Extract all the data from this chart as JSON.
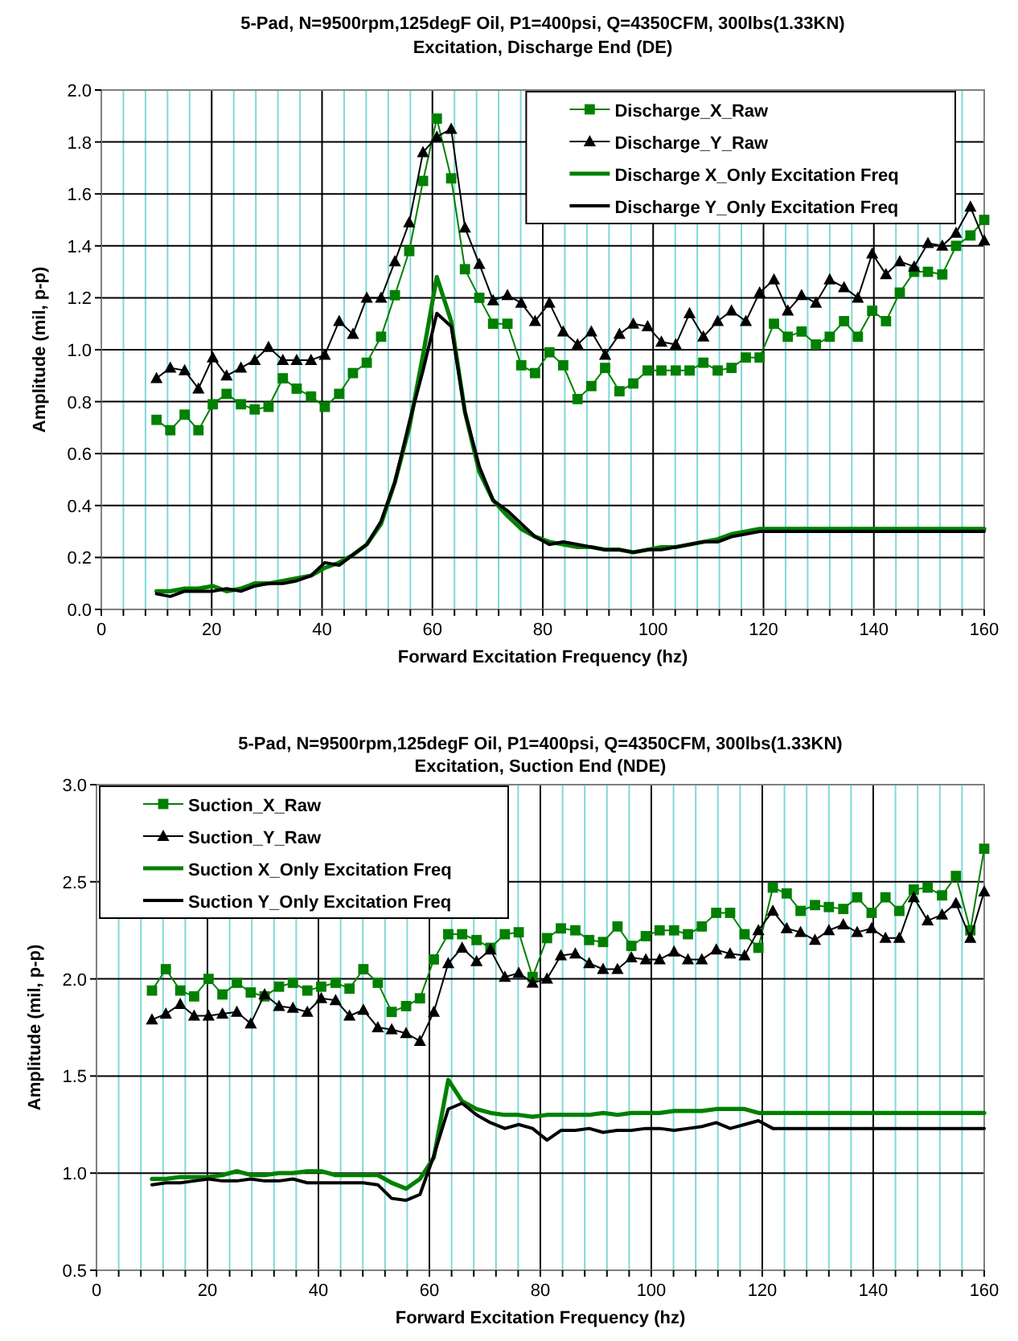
{
  "chart_data": [
    {
      "type": "line",
      "title": "5-Pad, N=9500rpm,125degF Oil, P1=400psi, Q=4350CFM, 300lbs(1.33KN)",
      "subtitle": "Excitation, Discharge End (DE)",
      "xlabel": "Forward Excitation Frequency (hz)",
      "ylabel": "Amplitude (mil, p-p)",
      "x": [
        10,
        12.5,
        15.1,
        17.6,
        20.2,
        22.7,
        25.3,
        27.8,
        30.3,
        32.9,
        35.4,
        38.0,
        40.5,
        43.1,
        45.6,
        48.1,
        50.7,
        53.2,
        55.8,
        58.3,
        60.8,
        63.4,
        65.9,
        68.5,
        71.0,
        73.6,
        76.1,
        78.6,
        81.2,
        83.7,
        86.3,
        88.8,
        91.3,
        93.9,
        96.4,
        99.0,
        101.5,
        104.1,
        106.6,
        109.1,
        111.7,
        114.2,
        116.8,
        119.3,
        121.9,
        124.4,
        126.9,
        129.5,
        132.0,
        134.6,
        137.1,
        139.7,
        142.2,
        144.7,
        147.3,
        149.8,
        152.4,
        154.9,
        157.5,
        160.0
      ],
      "series": [
        {
          "name": "Discharge_X_Raw",
          "color": "#008000",
          "marker": "square",
          "values": [
            0.73,
            0.69,
            0.75,
            0.69,
            0.79,
            0.83,
            0.79,
            0.77,
            0.78,
            0.89,
            0.85,
            0.82,
            0.78,
            0.83,
            0.91,
            0.95,
            1.05,
            1.21,
            1.38,
            1.65,
            1.89,
            1.66,
            1.31,
            1.2,
            1.1,
            1.1,
            0.94,
            0.91,
            0.99,
            0.94,
            0.81,
            0.86,
            0.93,
            0.84,
            0.87,
            0.92,
            0.92,
            0.92,
            0.92,
            0.95,
            0.92,
            0.93,
            0.97,
            0.97,
            1.1,
            1.05,
            1.07,
            1.02,
            1.05,
            1.11,
            1.05,
            1.15,
            1.11,
            1.22,
            1.3,
            1.3,
            1.29,
            1.4,
            1.44,
            1.5
          ]
        },
        {
          "name": "Discharge_Y_Raw",
          "color": "#000000",
          "marker": "triangle",
          "values": [
            0.89,
            0.93,
            0.92,
            0.85,
            0.97,
            0.9,
            0.93,
            0.96,
            1.01,
            0.96,
            0.96,
            0.96,
            0.98,
            1.11,
            1.06,
            1.2,
            1.2,
            1.34,
            1.49,
            1.76,
            1.82,
            1.85,
            1.47,
            1.33,
            1.19,
            1.21,
            1.18,
            1.11,
            1.18,
            1.07,
            1.02,
            1.07,
            0.98,
            1.06,
            1.1,
            1.09,
            1.03,
            1.02,
            1.14,
            1.05,
            1.11,
            1.15,
            1.11,
            1.22,
            1.27,
            1.15,
            1.21,
            1.18,
            1.27,
            1.24,
            1.2,
            1.37,
            1.29,
            1.34,
            1.32,
            1.41,
            1.4,
            1.45,
            1.55,
            1.42
          ]
        },
        {
          "name": "Discharge X_Only Excitation Freq",
          "color": "#008000",
          "marker": "none",
          "values": [
            0.07,
            0.07,
            0.08,
            0.08,
            0.09,
            0.07,
            0.08,
            0.1,
            0.1,
            0.11,
            0.12,
            0.13,
            0.16,
            0.18,
            0.21,
            0.25,
            0.33,
            0.49,
            0.7,
            0.98,
            1.28,
            1.11,
            0.76,
            0.53,
            0.42,
            0.36,
            0.31,
            0.28,
            0.26,
            0.25,
            0.24,
            0.24,
            0.23,
            0.23,
            0.22,
            0.23,
            0.24,
            0.24,
            0.25,
            0.26,
            0.27,
            0.29,
            0.3,
            0.31,
            0.31,
            0.31,
            0.31,
            0.31,
            0.31,
            0.31,
            0.31,
            0.31,
            0.31,
            0.31,
            0.31,
            0.31,
            0.31,
            0.31,
            0.31,
            0.31
          ]
        },
        {
          "name": "Discharge Y_Only Excitation Freq",
          "color": "#000000",
          "marker": "none",
          "values": [
            0.06,
            0.05,
            0.07,
            0.07,
            0.07,
            0.08,
            0.07,
            0.09,
            0.1,
            0.1,
            0.11,
            0.13,
            0.18,
            0.17,
            0.21,
            0.25,
            0.34,
            0.49,
            0.72,
            0.92,
            1.14,
            1.09,
            0.76,
            0.55,
            0.42,
            0.38,
            0.33,
            0.28,
            0.25,
            0.26,
            0.25,
            0.24,
            0.23,
            0.23,
            0.22,
            0.23,
            0.23,
            0.24,
            0.25,
            0.26,
            0.26,
            0.28,
            0.29,
            0.3,
            0.3,
            0.3,
            0.3,
            0.3,
            0.3,
            0.3,
            0.3,
            0.3,
            0.3,
            0.3,
            0.3,
            0.3,
            0.3,
            0.3,
            0.3,
            0.3
          ]
        }
      ],
      "xlim": [
        0,
        160
      ],
      "ylim": [
        0,
        2.0
      ],
      "xticks": [
        0,
        {
          "value": 4,
          "label": null
        },
        {
          "value": 8,
          "label": null
        },
        {
          "value": 12,
          "label": null
        },
        {
          "value": 16,
          "label": null
        },
        20,
        {
          "value": 24,
          "label": null
        },
        {
          "value": 28,
          "label": null
        },
        {
          "value": 32,
          "label": null
        },
        {
          "value": 36,
          "label": null
        },
        40,
        {
          "value": 44,
          "label": null
        },
        {
          "value": 48,
          "label": null
        },
        {
          "value": 52,
          "label": null
        },
        {
          "value": 56,
          "label": null
        },
        60,
        {
          "value": 64,
          "label": null
        },
        {
          "value": 68,
          "label": null
        },
        {
          "value": 72,
          "label": null
        },
        {
          "value": 76,
          "label": null
        },
        80,
        {
          "value": 84,
          "label": null
        },
        {
          "value": 88,
          "label": null
        },
        {
          "value": 92,
          "label": null
        },
        {
          "value": 96,
          "label": null
        },
        100,
        {
          "value": 104,
          "label": null
        },
        {
          "value": 108,
          "label": null
        },
        {
          "value": 112,
          "label": null
        },
        {
          "value": 116,
          "label": null
        },
        120,
        {
          "value": 124,
          "label": null
        },
        {
          "value": 128,
          "label": null
        },
        {
          "value": 132,
          "label": null
        },
        {
          "value": 136,
          "label": null
        },
        140,
        {
          "value": 144,
          "label": null
        },
        {
          "value": 148,
          "label": null
        },
        {
          "value": 152,
          "label": null
        },
        {
          "value": 156,
          "label": null
        },
        160
      ],
      "yticks": [
        {
          "value": 0,
          "label": "0.0"
        },
        0.2,
        0.4,
        0.6,
        0.8,
        {
          "value": 1,
          "label": "1.0"
        },
        1.2,
        1.4,
        1.6,
        1.8,
        {
          "value": 2,
          "label": "2.0"
        }
      ],
      "grid": true,
      "legend": "top right"
    },
    {
      "type": "line",
      "title": "5-Pad, N=9500rpm,125degF Oil, P1=400psi, Q=4350CFM, 300lbs(1.33KN)",
      "subtitle": "Excitation, Suction End (NDE)",
      "xlabel": "Forward Excitation Frequency (hz)",
      "ylabel": "Amplitude (mil, p-p)",
      "x": [
        10,
        12.5,
        15.1,
        17.6,
        20.2,
        22.7,
        25.3,
        27.8,
        30.3,
        32.9,
        35.4,
        38.0,
        40.5,
        43.1,
        45.6,
        48.1,
        50.7,
        53.2,
        55.8,
        58.3,
        60.8,
        63.4,
        65.9,
        68.5,
        71.0,
        73.6,
        76.1,
        78.6,
        81.2,
        83.7,
        86.3,
        88.8,
        91.3,
        93.9,
        96.4,
        99.0,
        101.5,
        104.1,
        106.6,
        109.1,
        111.7,
        114.2,
        116.8,
        119.3,
        121.9,
        124.4,
        126.9,
        129.5,
        132.0,
        134.6,
        137.1,
        139.7,
        142.2,
        144.7,
        147.3,
        149.8,
        152.4,
        154.9,
        157.5,
        160.0
      ],
      "series": [
        {
          "name": "Suction_X_Raw",
          "color": "#008000",
          "marker": "square",
          "values": [
            1.94,
            2.05,
            1.94,
            1.91,
            2.0,
            1.92,
            1.98,
            1.93,
            1.91,
            1.96,
            1.98,
            1.94,
            1.96,
            1.98,
            1.95,
            2.05,
            1.98,
            1.83,
            1.86,
            1.9,
            2.1,
            2.23,
            2.23,
            2.2,
            2.16,
            2.23,
            2.24,
            2.01,
            2.21,
            2.26,
            2.25,
            2.2,
            2.19,
            2.27,
            2.17,
            2.22,
            2.25,
            2.25,
            2.23,
            2.27,
            2.34,
            2.34,
            2.23,
            2.16,
            2.47,
            2.44,
            2.35,
            2.38,
            2.37,
            2.36,
            2.42,
            2.34,
            2.42,
            2.35,
            2.46,
            2.47,
            2.43,
            2.53,
            2.25,
            2.67
          ]
        },
        {
          "name": "Suction_Y_Raw",
          "color": "#000000",
          "marker": "triangle",
          "values": [
            1.79,
            1.82,
            1.87,
            1.81,
            1.81,
            1.82,
            1.83,
            1.77,
            1.92,
            1.86,
            1.85,
            1.83,
            1.9,
            1.89,
            1.81,
            1.84,
            1.75,
            1.74,
            1.72,
            1.68,
            1.83,
            2.08,
            2.16,
            2.09,
            2.15,
            2.01,
            2.03,
            1.98,
            2.0,
            2.12,
            2.13,
            2.08,
            2.05,
            2.05,
            2.11,
            2.1,
            2.1,
            2.14,
            2.1,
            2.1,
            2.15,
            2.13,
            2.12,
            2.25,
            2.35,
            2.26,
            2.24,
            2.2,
            2.25,
            2.28,
            2.24,
            2.26,
            2.21,
            2.21,
            2.42,
            2.3,
            2.33,
            2.39,
            2.21,
            2.45
          ]
        },
        {
          "name": "Suction X_Only Excitation Freq",
          "color": "#008000",
          "marker": "none",
          "values": [
            0.97,
            0.97,
            0.98,
            0.98,
            0.98,
            0.99,
            1.01,
            0.99,
            0.99,
            1.0,
            1.0,
            1.01,
            1.01,
            0.99,
            0.99,
            0.99,
            0.99,
            0.95,
            0.92,
            0.97,
            1.08,
            1.48,
            1.37,
            1.33,
            1.31,
            1.3,
            1.3,
            1.29,
            1.3,
            1.3,
            1.3,
            1.3,
            1.31,
            1.3,
            1.31,
            1.31,
            1.31,
            1.32,
            1.32,
            1.32,
            1.33,
            1.33,
            1.33,
            1.31,
            1.31,
            1.31,
            1.31,
            1.31,
            1.31,
            1.31,
            1.31,
            1.31,
            1.31,
            1.31,
            1.31,
            1.31,
            1.31,
            1.31,
            1.31,
            1.31
          ]
        },
        {
          "name": "Suction Y_Only Excitation Freq",
          "color": "#000000",
          "marker": "none",
          "values": [
            0.94,
            0.95,
            0.95,
            0.96,
            0.97,
            0.96,
            0.96,
            0.97,
            0.96,
            0.96,
            0.97,
            0.95,
            0.95,
            0.95,
            0.95,
            0.95,
            0.94,
            0.87,
            0.86,
            0.89,
            1.09,
            1.33,
            1.36,
            1.3,
            1.26,
            1.23,
            1.25,
            1.23,
            1.17,
            1.22,
            1.22,
            1.23,
            1.21,
            1.22,
            1.22,
            1.23,
            1.23,
            1.22,
            1.23,
            1.24,
            1.26,
            1.23,
            1.25,
            1.27,
            1.23,
            1.23,
            1.23,
            1.23,
            1.23,
            1.23,
            1.23,
            1.23,
            1.23,
            1.23,
            1.23,
            1.23,
            1.23,
            1.23,
            1.23,
            1.23
          ]
        }
      ],
      "xlim": [
        0,
        160
      ],
      "ylim": [
        0.5,
        3.0
      ],
      "xticks": [
        0,
        {
          "value": 4,
          "label": null
        },
        {
          "value": 8,
          "label": null
        },
        {
          "value": 12,
          "label": null
        },
        {
          "value": 16,
          "label": null
        },
        20,
        {
          "value": 24,
          "label": null
        },
        {
          "value": 28,
          "label": null
        },
        {
          "value": 32,
          "label": null
        },
        {
          "value": 36,
          "label": null
        },
        40,
        {
          "value": 44,
          "label": null
        },
        {
          "value": 48,
          "label": null
        },
        {
          "value": 52,
          "label": null
        },
        {
          "value": 56,
          "label": null
        },
        60,
        {
          "value": 64,
          "label": null
        },
        {
          "value": 68,
          "label": null
        },
        {
          "value": 72,
          "label": null
        },
        {
          "value": 76,
          "label": null
        },
        80,
        {
          "value": 84,
          "label": null
        },
        {
          "value": 88,
          "label": null
        },
        {
          "value": 92,
          "label": null
        },
        {
          "value": 96,
          "label": null
        },
        100,
        {
          "value": 104,
          "label": null
        },
        {
          "value": 108,
          "label": null
        },
        {
          "value": 112,
          "label": null
        },
        {
          "value": 116,
          "label": null
        },
        120,
        {
          "value": 124,
          "label": null
        },
        {
          "value": 128,
          "label": null
        },
        {
          "value": 132,
          "label": null
        },
        {
          "value": 136,
          "label": null
        },
        140,
        {
          "value": 144,
          "label": null
        },
        {
          "value": 148,
          "label": null
        },
        {
          "value": 152,
          "label": null
        },
        {
          "value": 156,
          "label": null
        },
        160
      ],
      "yticks": [
        0.5,
        {
          "value": 1,
          "label": "1.0"
        },
        1.5,
        {
          "value": 2,
          "label": "2.0"
        },
        2.5,
        {
          "value": 3,
          "label": "3.0"
        }
      ],
      "grid": true,
      "legend": "top left"
    }
  ]
}
